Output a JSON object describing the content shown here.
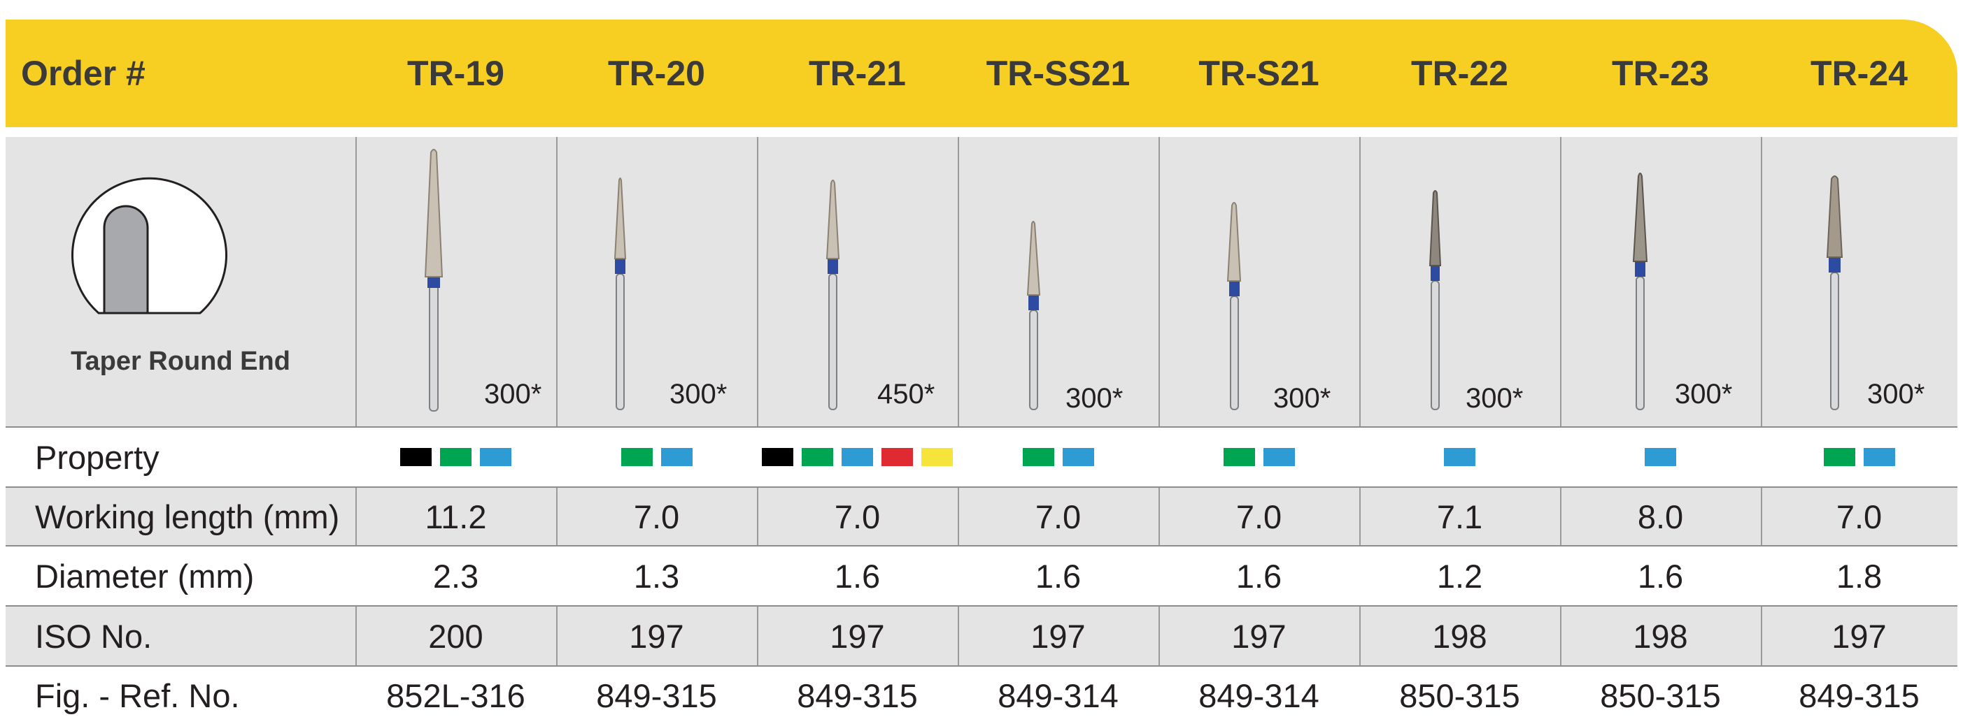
{
  "header": {
    "order_label": "Order #",
    "columns": [
      "TR-19",
      "TR-20",
      "TR-21",
      "TR-SS21",
      "TR-S21",
      "TR-22",
      "TR-23",
      "TR-24"
    ]
  },
  "shape": {
    "label": "Taper Round End"
  },
  "grits": [
    "300*",
    "300*",
    "450*",
    "300*",
    "300*",
    "300*",
    "300*",
    "300*"
  ],
  "property": {
    "label": "Property",
    "swatches": [
      [
        "#000000",
        "#00a552",
        "#2e9bd4"
      ],
      [
        "#00a552",
        "#2e9bd4"
      ],
      [
        "#000000",
        "#00a552",
        "#2e9bd4",
        "#e02a32",
        "#f7e43a"
      ],
      [
        "#00a552",
        "#2e9bd4"
      ],
      [
        "#00a552",
        "#2e9bd4"
      ],
      [
        "#2e9bd4"
      ],
      [
        "#2e9bd4"
      ],
      [
        "#00a552",
        "#2e9bd4"
      ]
    ]
  },
  "working_length": {
    "label": "Working length (mm)",
    "values": [
      "11.2",
      "7.0",
      "7.0",
      "7.0",
      "7.0",
      "7.1",
      "8.0",
      "7.0"
    ]
  },
  "diameter": {
    "label": "Diameter (mm)",
    "values": [
      "2.3",
      "1.3",
      "1.6",
      "1.6",
      "1.6",
      "1.2",
      "1.6",
      "1.8"
    ]
  },
  "iso": {
    "label": "ISO No.",
    "values": [
      "200",
      "197",
      "197",
      "197",
      "197",
      "198",
      "198",
      "197"
    ]
  },
  "ref": {
    "label": "Fig. - Ref. No.",
    "values": [
      "852L-316",
      "849-315",
      "849-315",
      "849-314",
      "849-314",
      "850-315",
      "850-315",
      "849-315"
    ]
  }
}
